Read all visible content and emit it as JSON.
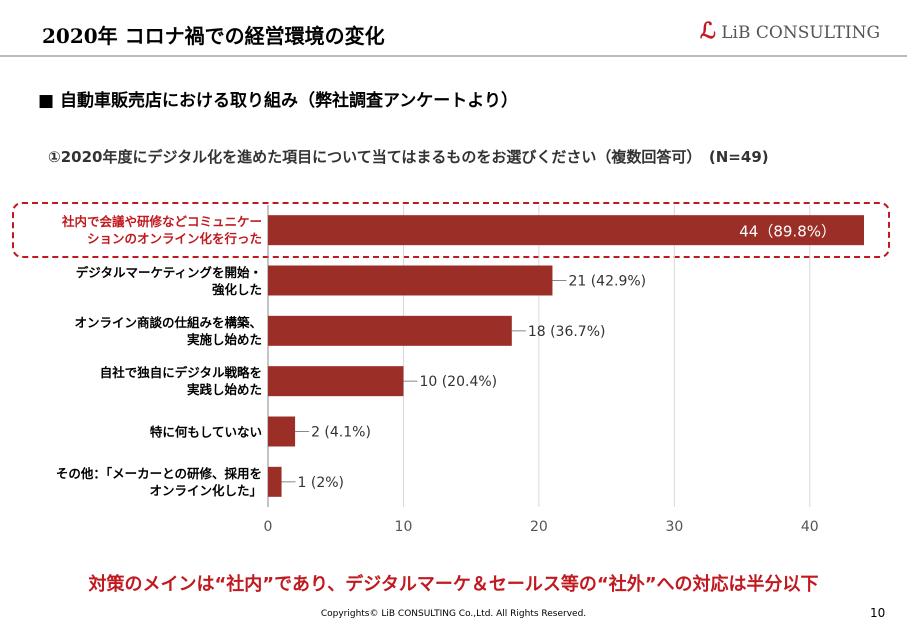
{
  "header": {
    "title": "2020年 コロナ禍での経営環境の変化",
    "logo": "LiB CONSULTING"
  },
  "section": "■ 自動車販売店における取り組み（弊社調査アンケートより）",
  "question": "①2020年度にデジタル化を進めた項目について当てはまるものをお選びください（複数回答可）　(N=49)",
  "chart_data": {
    "type": "barh",
    "categories": [
      "社内で会議や研修などコミュニケー\nションのオンライン化を行った",
      "デジタルマーケティングを開始・\n強化した",
      "オンライン商談の仕組みを構築、\n実施し始めた",
      "自社で独自にデジタル戦略を\n実践し始めた",
      "特に何もしていない",
      "その他：「メーカーとの研修、採用を\nオンライン化した」"
    ],
    "values": [
      44,
      21,
      18,
      10,
      2,
      1
    ],
    "value_labels": [
      "44（89.8%）",
      "21 (42.9%)",
      "18 (36.7%)",
      "10 (20.4%)",
      "2 (4.1%)",
      "1 (2%)"
    ],
    "color": "#9b2f28",
    "xlim": [
      0,
      44
    ],
    "xticks": [
      0,
      10,
      20,
      30,
      40
    ],
    "grid": true
  },
  "conclusion": "対策のメインは“社内”であり、デジタルマーケ＆セールス等の“社外”への対応は半分以下",
  "footer": {
    "copyright": "Copyrights© LiB CONSULTING Co.,Ltd.  All Rights Reserved.",
    "page": "10"
  }
}
